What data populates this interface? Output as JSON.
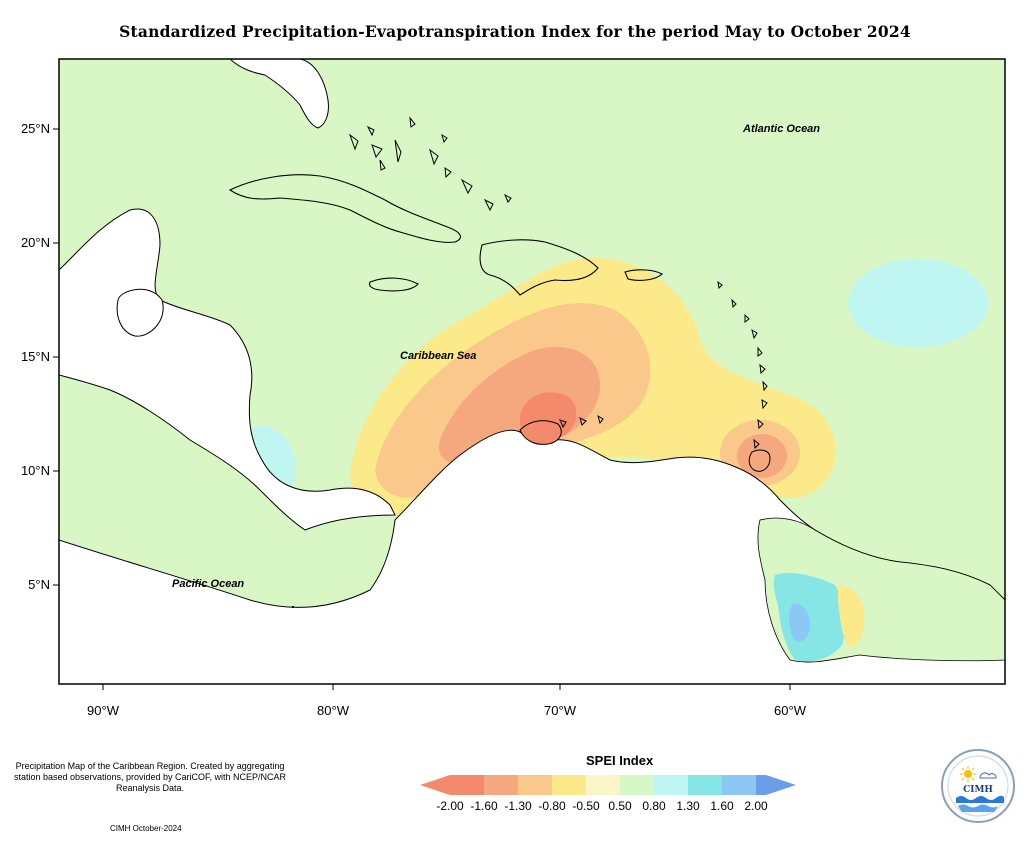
{
  "title": "Standardized Precipitation-Evapotranspiration Index for the period May to October 2024",
  "lat_labels": [
    "25°N",
    "20°N",
    "15°N",
    "10°N",
    "5°N"
  ],
  "lon_labels": [
    "90°W",
    "80°W",
    "70°W",
    "60°W"
  ],
  "ocean_labels": {
    "atlantic": "Atlantic Ocean",
    "caribbean": "Caribbean Sea",
    "pacific": "Pacific Ocean"
  },
  "legend": {
    "title": "SPEI Index",
    "ticks": [
      "-2.00",
      "-1.60",
      "-1.30",
      "-0.80",
      "-0.50",
      "0.50",
      "0.80",
      "1.30",
      "1.60",
      "2.00"
    ],
    "colors": [
      "#f28a6b",
      "#f5a77e",
      "#fac88a",
      "#fbe98a",
      "#fbf6c8",
      "#d5f8c6",
      "#c0f6f2",
      "#86e6e6",
      "#8cc8f4",
      "#6b9ee8"
    ]
  },
  "note": "Precipitation Map of the Caribbean Region. Created by aggregating station based observations, provided by CariCOF, with NCEP/NCAR Reanalysis Data.",
  "credit": "CIMH October-2024",
  "logo_text": "CIMH",
  "colors": {
    "near_normal": "#d9f7c4",
    "land": "#ffffff",
    "frame": "#000000"
  }
}
